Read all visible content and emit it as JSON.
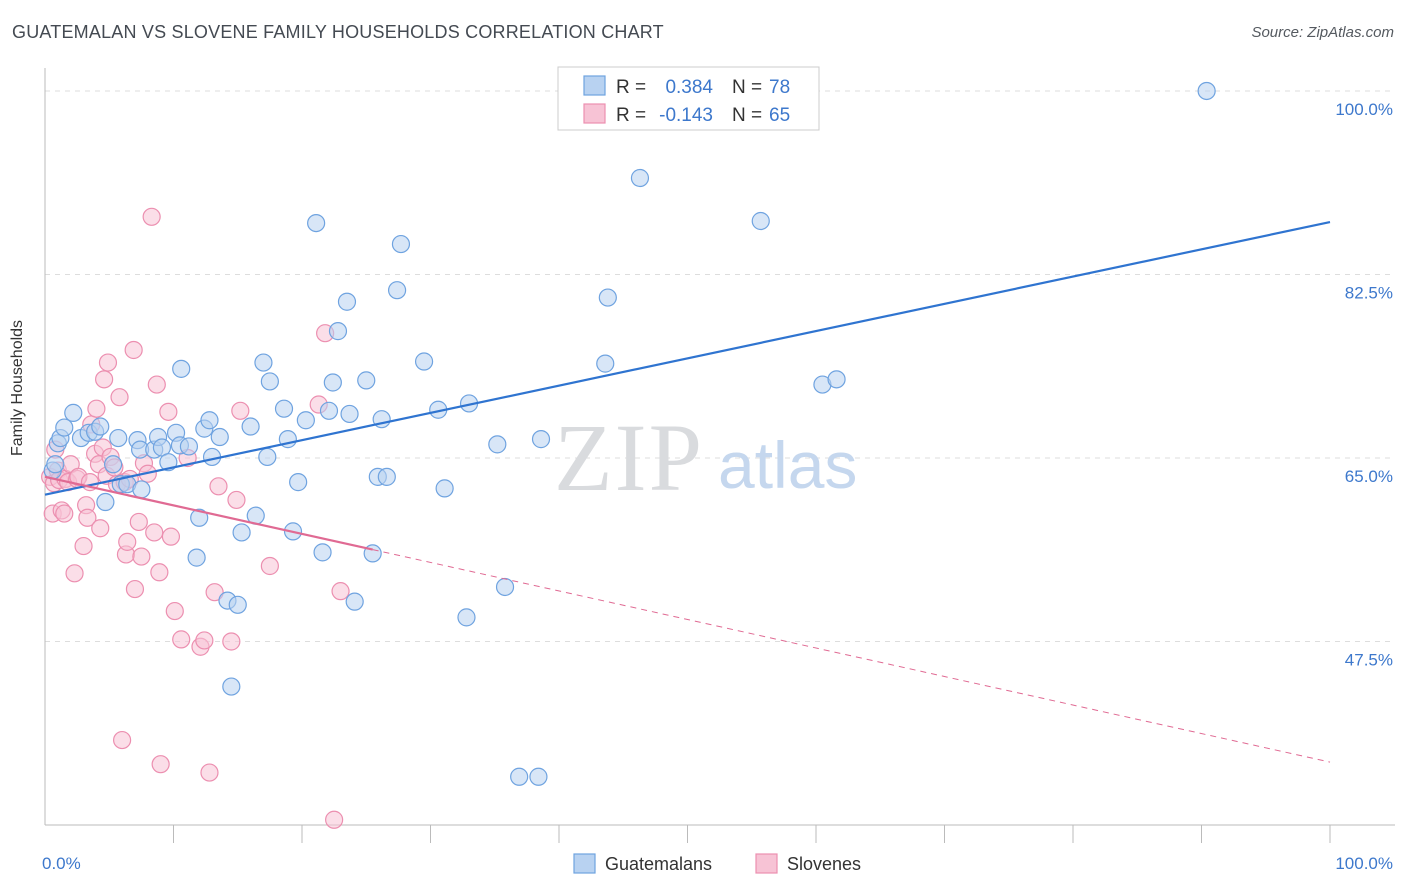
{
  "title": "GUATEMALAN VS SLOVENE FAMILY HOUSEHOLDS CORRELATION CHART",
  "source": "Source: ZipAtlas.com",
  "watermark": {
    "zip": "ZIP",
    "atlas": "atlas"
  },
  "colors": {
    "blue": "#6fa3e0",
    "blue_fill": "#b8d2f1",
    "blue_line": "#2f74d0",
    "pink": "#ec8fb0",
    "pink_fill": "#f7c3d5",
    "pink_line": "#e06a93",
    "axis_text": "#3d78cc",
    "grid": "#dddddd"
  },
  "legend": {
    "rows": [
      {
        "r_label": "R =",
        "r_value": "0.384",
        "n_label": "N =",
        "n_value": "78"
      },
      {
        "r_label": "R =",
        "r_value": "-0.143",
        "n_label": "N =",
        "n_value": "65"
      }
    ]
  },
  "bottom_legend": [
    "Guatemalans",
    "Slovenes"
  ],
  "chart_data": {
    "type": "scatter",
    "title": "GUATEMALAN VS SLOVENE FAMILY HOUSEHOLDS CORRELATION CHART",
    "xlabel": "",
    "ylabel": "Family Households",
    "xlim": [
      0,
      100
    ],
    "ylim": [
      30,
      102
    ],
    "x_tick_labels": [
      "0.0%",
      "100.0%"
    ],
    "y_ticks": [
      47.5,
      65.0,
      82.5,
      100.0
    ],
    "y_tick_labels": [
      "47.5%",
      "65.0%",
      "82.5%",
      "100.0%"
    ],
    "series": [
      {
        "name": "Guatemalans",
        "color": "#6fa3e0",
        "R": 0.384,
        "N": 78,
        "trend": {
          "x": [
            0,
            100
          ],
          "y": [
            61.5,
            87.5
          ],
          "dashed_from": null
        },
        "points": [
          [
            0.6,
            63.8
          ],
          [
            0.8,
            64.4
          ],
          [
            1.0,
            66.4
          ],
          [
            1.2,
            66.9
          ],
          [
            1.5,
            67.9
          ],
          [
            2.2,
            69.3
          ],
          [
            2.8,
            66.9
          ],
          [
            3.4,
            67.4
          ],
          [
            3.9,
            67.5
          ],
          [
            4.3,
            68.0
          ],
          [
            4.7,
            60.8
          ],
          [
            5.3,
            64.4
          ],
          [
            5.7,
            66.9
          ],
          [
            5.9,
            62.5
          ],
          [
            6.4,
            62.5
          ],
          [
            7.2,
            66.7
          ],
          [
            7.4,
            65.8
          ],
          [
            7.5,
            62.0
          ],
          [
            8.5,
            65.8
          ],
          [
            8.8,
            67.0
          ],
          [
            9.1,
            66.0
          ],
          [
            9.6,
            64.6
          ],
          [
            10.2,
            67.4
          ],
          [
            10.5,
            66.2
          ],
          [
            10.6,
            73.5
          ],
          [
            11.2,
            66.1
          ],
          [
            11.8,
            55.5
          ],
          [
            12.0,
            59.3
          ],
          [
            12.4,
            67.8
          ],
          [
            12.8,
            68.6
          ],
          [
            13.0,
            65.1
          ],
          [
            13.6,
            67.0
          ],
          [
            14.2,
            51.4
          ],
          [
            14.5,
            43.2
          ],
          [
            15.0,
            51.0
          ],
          [
            15.3,
            57.9
          ],
          [
            16.0,
            68.0
          ],
          [
            16.4,
            59.5
          ],
          [
            17.0,
            74.1
          ],
          [
            17.3,
            65.1
          ],
          [
            17.5,
            72.3
          ],
          [
            18.6,
            69.7
          ],
          [
            18.9,
            66.8
          ],
          [
            19.3,
            58.0
          ],
          [
            19.7,
            62.7
          ],
          [
            20.3,
            68.6
          ],
          [
            21.1,
            87.4
          ],
          [
            21.6,
            56.0
          ],
          [
            22.1,
            69.5
          ],
          [
            22.4,
            72.2
          ],
          [
            22.8,
            77.1
          ],
          [
            23.5,
            79.9
          ],
          [
            23.7,
            69.2
          ],
          [
            24.1,
            51.3
          ],
          [
            25.0,
            72.4
          ],
          [
            25.5,
            55.9
          ],
          [
            25.9,
            63.2
          ],
          [
            26.2,
            68.7
          ],
          [
            26.6,
            63.2
          ],
          [
            27.4,
            81.0
          ],
          [
            27.7,
            85.4
          ],
          [
            29.5,
            74.2
          ],
          [
            30.6,
            69.6
          ],
          [
            31.1,
            62.1
          ],
          [
            32.8,
            49.8
          ],
          [
            33.0,
            70.2
          ],
          [
            35.2,
            66.3
          ],
          [
            35.8,
            52.7
          ],
          [
            36.9,
            34.6
          ],
          [
            38.4,
            34.6
          ],
          [
            38.6,
            66.8
          ],
          [
            43.6,
            74.0
          ],
          [
            43.8,
            80.3
          ],
          [
            46.3,
            91.7
          ],
          [
            55.7,
            87.6
          ],
          [
            60.5,
            72.0
          ],
          [
            61.6,
            72.5
          ],
          [
            90.4,
            100.0
          ]
        ]
      },
      {
        "name": "Slovenes",
        "color": "#ec8fb0",
        "R": -0.143,
        "N": 65,
        "trend": {
          "x": [
            0,
            100
          ],
          "y": [
            63.2,
            36.0
          ],
          "solid_until": 25.5
        },
        "points": [
          [
            0.4,
            63.2
          ],
          [
            0.6,
            59.7
          ],
          [
            0.7,
            62.6
          ],
          [
            0.8,
            65.8
          ],
          [
            1.0,
            63.8
          ],
          [
            1.1,
            62.9
          ],
          [
            1.3,
            60.0
          ],
          [
            1.5,
            59.7
          ],
          [
            1.6,
            63.0
          ],
          [
            1.8,
            62.7
          ],
          [
            2.0,
            64.4
          ],
          [
            2.3,
            54.0
          ],
          [
            2.5,
            63.0
          ],
          [
            2.6,
            63.2
          ],
          [
            3.0,
            56.6
          ],
          [
            3.2,
            60.5
          ],
          [
            3.3,
            59.3
          ],
          [
            3.5,
            62.7
          ],
          [
            3.6,
            68.2
          ],
          [
            3.9,
            65.4
          ],
          [
            4.0,
            69.7
          ],
          [
            4.2,
            64.4
          ],
          [
            4.3,
            58.3
          ],
          [
            4.5,
            66.0
          ],
          [
            4.6,
            72.5
          ],
          [
            4.8,
            63.3
          ],
          [
            4.9,
            74.1
          ],
          [
            5.1,
            65.1
          ],
          [
            5.4,
            64.1
          ],
          [
            5.6,
            62.5
          ],
          [
            5.8,
            70.8
          ],
          [
            6.0,
            38.1
          ],
          [
            6.2,
            62.7
          ],
          [
            6.3,
            55.8
          ],
          [
            6.4,
            57.0
          ],
          [
            6.6,
            63.0
          ],
          [
            6.9,
            75.3
          ],
          [
            7.0,
            52.5
          ],
          [
            7.3,
            58.9
          ],
          [
            7.5,
            55.6
          ],
          [
            7.7,
            64.5
          ],
          [
            8.0,
            63.5
          ],
          [
            8.3,
            88.0
          ],
          [
            8.5,
            57.9
          ],
          [
            8.7,
            72.0
          ],
          [
            8.9,
            54.1
          ],
          [
            9.0,
            35.8
          ],
          [
            9.6,
            69.4
          ],
          [
            9.8,
            57.5
          ],
          [
            10.1,
            50.4
          ],
          [
            10.6,
            47.7
          ],
          [
            11.1,
            65.0
          ],
          [
            12.1,
            47.0
          ],
          [
            12.4,
            47.6
          ],
          [
            12.8,
            35.0
          ],
          [
            13.2,
            52.2
          ],
          [
            13.5,
            62.3
          ],
          [
            14.5,
            47.5
          ],
          [
            14.9,
            61.0
          ],
          [
            15.2,
            69.5
          ],
          [
            17.5,
            54.7
          ],
          [
            21.3,
            70.1
          ],
          [
            21.8,
            76.9
          ],
          [
            22.5,
            30.5
          ],
          [
            23.0,
            52.3
          ]
        ]
      }
    ]
  }
}
